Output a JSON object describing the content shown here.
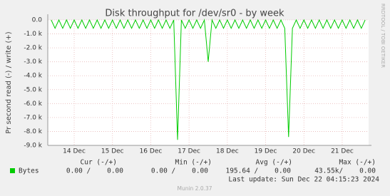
{
  "chart_data": {
    "type": "line",
    "title": "Disk throughput for /dev/sr0 - by week",
    "y_label": "Pr second read (-) / write (+)",
    "side_label": "RRDTOOL / TOBI OETIKER",
    "x": [
      13.4,
      13.5,
      13.6,
      13.7,
      13.8,
      13.9,
      14.0,
      14.1,
      14.2,
      14.3,
      14.4,
      14.5,
      14.6,
      14.7,
      14.8,
      14.9,
      15.0,
      15.1,
      15.2,
      15.3,
      15.4,
      15.5,
      15.6,
      15.7,
      15.8,
      15.9,
      16.0,
      16.1,
      16.2,
      16.3,
      16.4,
      16.5,
      16.6,
      16.7,
      16.8,
      16.9,
      17.0,
      17.1,
      17.2,
      17.3,
      17.4,
      17.5,
      17.6,
      17.7,
      17.8,
      17.9,
      18.0,
      18.1,
      18.2,
      18.3,
      18.4,
      18.5,
      18.6,
      18.7,
      18.8,
      18.9,
      19.0,
      19.1,
      19.2,
      19.3,
      19.4,
      19.5,
      19.6,
      19.7,
      19.8,
      19.9,
      20.0,
      20.1,
      20.2,
      20.3,
      20.4,
      20.5,
      20.6,
      20.7,
      20.8,
      20.9,
      21.0,
      21.1,
      21.2,
      21.3,
      21.4,
      21.5,
      21.6
    ],
    "series": [
      {
        "name": "Bytes",
        "color": "#00cc00",
        "values": [
          0,
          -600,
          0,
          -600,
          0,
          -600,
          0,
          -600,
          0,
          -600,
          0,
          -600,
          0,
          -600,
          0,
          -600,
          0,
          -600,
          0,
          -600,
          0,
          -600,
          0,
          -600,
          0,
          -600,
          0,
          -600,
          0,
          -600,
          0,
          -600,
          0,
          -8600,
          0,
          -600,
          0,
          -600,
          0,
          -600,
          0,
          -3000,
          0,
          -600,
          0,
          -600,
          0,
          -600,
          0,
          -600,
          0,
          -600,
          0,
          -600,
          0,
          -600,
          0,
          -600,
          0,
          -600,
          0,
          -600,
          -8400,
          -600,
          0,
          -600,
          0,
          -600,
          0,
          -600,
          0,
          -600,
          0,
          -600,
          0,
          -600,
          0,
          -600,
          0,
          -600,
          0,
          -600,
          0
        ]
      }
    ],
    "xlim": [
      13.31,
      21.69
    ],
    "xticks": [
      {
        "value": 14,
        "label": "14 Dec"
      },
      {
        "value": 15,
        "label": "15 Dec"
      },
      {
        "value": 16,
        "label": "16 Dec"
      },
      {
        "value": 17,
        "label": "17 Dec"
      },
      {
        "value": 18,
        "label": "18 Dec"
      },
      {
        "value": 19,
        "label": "19 Dec"
      },
      {
        "value": 20,
        "label": "20 Dec"
      },
      {
        "value": 21,
        "label": "21 Dec"
      }
    ],
    "ylim": [
      -9000,
      0
    ],
    "yticks": [
      {
        "value": 0,
        "label": "0.0"
      },
      {
        "value": -1000,
        "label": "-1.0 k"
      },
      {
        "value": -2000,
        "label": "-2.0 k"
      },
      {
        "value": -3000,
        "label": "-3.0 k"
      },
      {
        "value": -4000,
        "label": "-4.0 k"
      },
      {
        "value": -5000,
        "label": "-5.0 k"
      },
      {
        "value": -6000,
        "label": "-6.0 k"
      },
      {
        "value": -7000,
        "label": "-7.0 k"
      },
      {
        "value": -8000,
        "label": "-8.0 k"
      },
      {
        "value": -9000,
        "label": "-9.0 k"
      }
    ],
    "grid": true,
    "legend_table": {
      "headers": [
        "Cur (-/+)",
        "Min (-/+)",
        "Avg (-/+)",
        "Max (-/+)"
      ],
      "row": [
        "0.00 /    0.00",
        "0.00 /    0.00",
        "195.64 /    0.00",
        "43.55k/    0.00"
      ]
    },
    "last_update": "Last update: Sun Dec 22 04:15:23 2024",
    "footer": "Munin 2.0.37"
  }
}
